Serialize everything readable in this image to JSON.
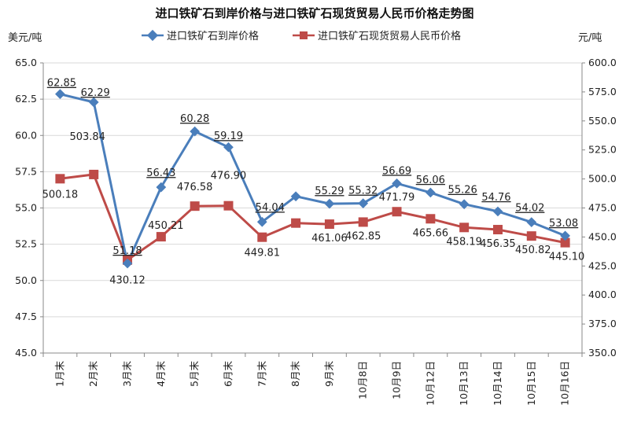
{
  "chart_data": {
    "type": "line",
    "title": "进口铁矿石到岸价格与进口铁矿石现货贸易人民币价格走势图",
    "ylabel_left": "美元/吨",
    "ylabel_right": "元/吨",
    "categories": [
      "1月末",
      "2月末",
      "3月末",
      "4月末",
      "5月末",
      "6月末",
      "7月末",
      "8月末",
      "9月末",
      "10月8日",
      "10月9日",
      "10月12日",
      "10月13日",
      "10月14日",
      "10月15日",
      "10月16日"
    ],
    "left_axis": {
      "min": 45.0,
      "max": 65.0,
      "step": 2.5,
      "ticks": [
        "45.0",
        "47.5",
        "50.0",
        "52.5",
        "55.0",
        "57.5",
        "60.0",
        "62.5",
        "65.0"
      ]
    },
    "right_axis": {
      "min": 350.0,
      "max": 600.0,
      "step": 25,
      "ticks": [
        "350.0",
        "375.0",
        "400.0",
        "425.0",
        "450.0",
        "475.0",
        "500.0",
        "525.0",
        "550.0",
        "575.0",
        "600.0"
      ]
    },
    "series": [
      {
        "name": "进口铁矿石到岸价格",
        "axis": "left",
        "color": "#4a7ebb",
        "marker": "diamond",
        "values": [
          62.85,
          62.29,
          51.18,
          56.43,
          60.28,
          59.19,
          54.04,
          55.8,
          55.29,
          55.32,
          56.69,
          56.06,
          55.26,
          54.76,
          54.02,
          53.08
        ],
        "labels": [
          "62.85",
          "62.29",
          "51.18",
          "56.43",
          "60.28",
          "59.19",
          "54.04",
          "",
          "55.29",
          "55.32",
          "56.69",
          "56.06",
          "55.26",
          "54.76",
          "54.02",
          "53.08"
        ]
      },
      {
        "name": "进口铁矿石现货贸易人民币价格",
        "axis": "right",
        "color": "#be4b48",
        "marker": "square",
        "values": [
          500.18,
          503.84,
          430.12,
          450.21,
          476.58,
          476.9,
          449.81,
          462.0,
          461.06,
          462.85,
          471.79,
          465.66,
          458.19,
          456.35,
          450.82,
          445.1
        ],
        "labels": [
          "500.18",
          "503.84",
          "430.12",
          "450.21",
          "476.58",
          "476.90",
          "449.81",
          "",
          "461.06",
          "462.85",
          "471.79",
          "465.66",
          "458.19",
          "456.35",
          "450.82",
          "445.10"
        ]
      }
    ],
    "legend": "top-center",
    "grid": true
  }
}
